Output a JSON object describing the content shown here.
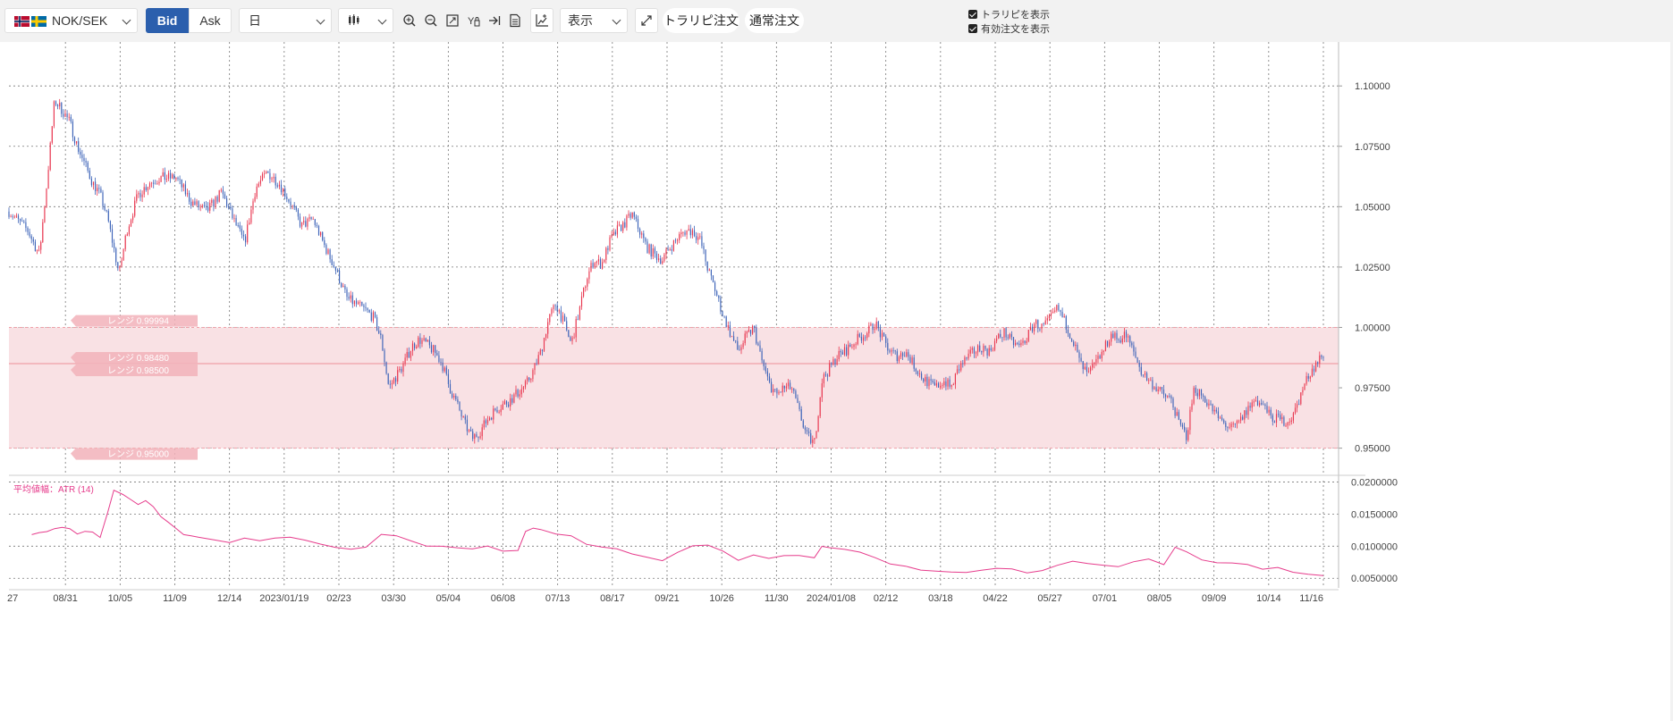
{
  "toolbar": {
    "pair": "NOK/SEK",
    "bid_label": "Bid",
    "ask_label": "Ask",
    "period": "日",
    "display_label": "表示",
    "trap_order_label": "トラリピ注文",
    "normal_order_label": "通常注文",
    "show_trap_label": "トラリピを表示",
    "show_orders_label": "有効注文を表示",
    "icons": [
      "zoom-in-icon",
      "zoom-out-icon",
      "fit-icon",
      "text-tool-icon",
      "jump-latest-icon",
      "document-icon",
      "add-indicator-icon",
      "fullscreen-icon"
    ]
  },
  "colors": {
    "accent": "#2b5fad",
    "up": "#e8364f",
    "down": "#3c63b8",
    "range_fill": "#f9e1e4",
    "range_line": "#f0a0a8",
    "atr_line": "#e63c8c"
  },
  "chart_data": [
    {
      "type": "candlestick",
      "pair": "NOK/SEK",
      "y_ticks": [
        "1.10000",
        "1.07500",
        "1.05000",
        "1.02500",
        "1.00000",
        "0.97500",
        "0.95000"
      ],
      "ylim": [
        0.9395,
        1.1182
      ],
      "x_ticks": [
        "27",
        "08/31",
        "10/05",
        "11/09",
        "12/14",
        "2023/01/19",
        "02/23",
        "03/30",
        "05/04",
        "06/08",
        "07/13",
        "08/17",
        "09/21",
        "10/26",
        "11/30",
        "2024/01/08",
        "02/12",
        "03/18",
        "04/22",
        "05/27",
        "07/01",
        "08/05",
        "09/09",
        "10/14",
        "11/16"
      ],
      "range_labels": [
        {
          "label": "レンジ 0.99994",
          "value": 0.99994
        },
        {
          "label": "レンジ 0.98480",
          "value": 0.9848
        },
        {
          "label": "レンジ 0.98500",
          "value": 0.985
        },
        {
          "label": "レンジ 0.95000",
          "value": 0.95
        }
      ],
      "range_band": [
        0.95,
        1.0
      ],
      "range_midline": 0.985,
      "close_path": [
        [
          0,
          1.048
        ],
        [
          2.5,
          1.04
        ],
        [
          4,
          1.03
        ],
        [
          5,
          1.06
        ],
        [
          6,
          1.094
        ],
        [
          7,
          1.09
        ],
        [
          8,
          1.085
        ],
        [
          9,
          1.075
        ],
        [
          11,
          1.06
        ],
        [
          12,
          1.055
        ],
        [
          13,
          1.045
        ],
        [
          14.5,
          1.022
        ],
        [
          15.5,
          1.04
        ],
        [
          17,
          1.055
        ],
        [
          18.5,
          1.06
        ],
        [
          20,
          1.062
        ],
        [
          22,
          1.062
        ],
        [
          24,
          1.052
        ],
        [
          26,
          1.048
        ],
        [
          28,
          1.056
        ],
        [
          29.5,
          1.045
        ],
        [
          31,
          1.035
        ],
        [
          32.5,
          1.058
        ],
        [
          34,
          1.064
        ],
        [
          35.5,
          1.06
        ],
        [
          37,
          1.052
        ],
        [
          38.5,
          1.042
        ],
        [
          40,
          1.045
        ],
        [
          41.5,
          1.034
        ],
        [
          43,
          1.024
        ],
        [
          44.5,
          1.012
        ],
        [
          46,
          1.009
        ],
        [
          47,
          1.007
        ],
        [
          48,
          1.004
        ],
        [
          49,
          0.995
        ],
        [
          50,
          0.975
        ],
        [
          51,
          0.98
        ],
        [
          52,
          0.985
        ],
        [
          53,
          0.992
        ],
        [
          54,
          0.995
        ],
        [
          55,
          0.993
        ],
        [
          56,
          0.99
        ],
        [
          57,
          0.985
        ],
        [
          58,
          0.975
        ],
        [
          59,
          0.968
        ],
        [
          60,
          0.96
        ],
        [
          61,
          0.954
        ],
        [
          62,
          0.957
        ],
        [
          63,
          0.962
        ],
        [
          64,
          0.966
        ],
        [
          65,
          0.968
        ],
        [
          66,
          0.97
        ],
        [
          67,
          0.973
        ],
        [
          68,
          0.976
        ],
        [
          69,
          0.982
        ],
        [
          70,
          0.99
        ],
        [
          71,
          1.003
        ],
        [
          72,
          1.01
        ],
        [
          73,
          1.002
        ],
        [
          74,
          0.993
        ],
        [
          75,
          1.006
        ],
        [
          76,
          1.02
        ],
        [
          77,
          1.028
        ],
        [
          78,
          1.026
        ],
        [
          79,
          1.035
        ],
        [
          80,
          1.04
        ],
        [
          81,
          1.043
        ],
        [
          82,
          1.047
        ],
        [
          83,
          1.04
        ],
        [
          84,
          1.033
        ],
        [
          85,
          1.03
        ],
        [
          86,
          1.028
        ],
        [
          87,
          1.033
        ],
        [
          88,
          1.037
        ],
        [
          89,
          1.04
        ],
        [
          90,
          1.04
        ],
        [
          91,
          1.036
        ],
        [
          92,
          1.024
        ],
        [
          93,
          1.015
        ],
        [
          94,
          1.005
        ],
        [
          95,
          0.997
        ],
        [
          96,
          0.99
        ],
        [
          97,
          0.996
        ],
        [
          98,
          1.0
        ],
        [
          99,
          0.987
        ],
        [
          100,
          0.977
        ],
        [
          101,
          0.972
        ],
        [
          102,
          0.975
        ],
        [
          103,
          0.975
        ],
        [
          104,
          0.965
        ],
        [
          105,
          0.955
        ],
        [
          106,
          0.952
        ],
        [
          107,
          0.978
        ],
        [
          108,
          0.983
        ],
        [
          109,
          0.988
        ],
        [
          110,
          0.99
        ],
        [
          111,
          0.993
        ],
        [
          112,
          0.996
        ],
        [
          113,
          0.998
        ],
        [
          114,
          1.002
        ],
        [
          115,
          0.995
        ],
        [
          116,
          0.99
        ],
        [
          117,
          0.988
        ],
        [
          118,
          0.99
        ],
        [
          119,
          0.985
        ],
        [
          120,
          0.98
        ],
        [
          121,
          0.977
        ],
        [
          122,
          0.975
        ],
        [
          123,
          0.978
        ],
        [
          124,
          0.975
        ],
        [
          125,
          0.983
        ],
        [
          126,
          0.987
        ],
        [
          127,
          0.99
        ],
        [
          128,
          0.992
        ],
        [
          129,
          0.99
        ],
        [
          130,
          0.995
        ],
        [
          131,
          0.998
        ],
        [
          132,
          0.994
        ],
        [
          133,
          0.992
        ],
        [
          134,
          0.996
        ],
        [
          135,
          1.002
        ],
        [
          136,
          1.0
        ],
        [
          137,
          1.003
        ],
        [
          138,
          1.008
        ],
        [
          139,
          1.002
        ],
        [
          140,
          0.995
        ],
        [
          141,
          0.985
        ],
        [
          142,
          0.98
        ],
        [
          143,
          0.985
        ],
        [
          144,
          0.99
        ],
        [
          145,
          0.997
        ],
        [
          146,
          0.995
        ],
        [
          147,
          0.997
        ],
        [
          148,
          0.99
        ],
        [
          149,
          0.982
        ],
        [
          150,
          0.978
        ],
        [
          151,
          0.975
        ],
        [
          152,
          0.972
        ],
        [
          153,
          0.97
        ],
        [
          154,
          0.96
        ],
        [
          155,
          0.955
        ],
        [
          156,
          0.975
        ],
        [
          157,
          0.972
        ],
        [
          158,
          0.968
        ],
        [
          159,
          0.963
        ],
        [
          160,
          0.96
        ],
        [
          161,
          0.958
        ],
        [
          162,
          0.961
        ],
        [
          163,
          0.966
        ],
        [
          164,
          0.97
        ],
        [
          165,
          0.968
        ],
        [
          166,
          0.963
        ],
        [
          167,
          0.962
        ],
        [
          168,
          0.961
        ],
        [
          169,
          0.963
        ],
        [
          170,
          0.972
        ],
        [
          171,
          0.98
        ],
        [
          172,
          0.985
        ],
        [
          173,
          0.989
        ]
      ],
      "xlim": [
        0,
        175
      ]
    },
    {
      "type": "line",
      "title": "平均値幅：ATR (14)",
      "y_ticks": [
        "0.0200000",
        "0.0150000",
        "0.0100000",
        "0.0050000"
      ],
      "ylim": [
        0.0035,
        0.0202
      ],
      "series": [
        {
          "name": "ATR (14)",
          "points": [
            [
              3,
              0.0118
            ],
            [
              4,
              0.012
            ],
            [
              5,
              0.0125
            ],
            [
              6,
              0.0128
            ],
            [
              7,
              0.0131
            ],
            [
              8,
              0.0126
            ],
            [
              9,
              0.012
            ],
            [
              10,
              0.0125
            ],
            [
              11,
              0.0122
            ],
            [
              12,
              0.0112
            ],
            [
              13,
              0.015
            ],
            [
              13.8,
              0.0188
            ],
            [
              15,
              0.0178
            ],
            [
              16,
              0.017
            ],
            [
              17,
              0.0165
            ],
            [
              18,
              0.0168
            ],
            [
              19,
              0.016
            ],
            [
              20,
              0.0148
            ],
            [
              21,
              0.0135
            ],
            [
              22,
              0.0125
            ],
            [
              23,
              0.012
            ],
            [
              24,
              0.0115
            ],
            [
              25,
              0.0112
            ],
            [
              27,
              0.011
            ],
            [
              29,
              0.0108
            ],
            [
              31,
              0.0112
            ],
            [
              33,
              0.011
            ],
            [
              35,
              0.0115
            ],
            [
              37,
              0.0112
            ],
            [
              39,
              0.011
            ],
            [
              41,
              0.0105
            ],
            [
              43,
              0.01
            ],
            [
              45,
              0.0098
            ],
            [
              47,
              0.01
            ],
            [
              49,
              0.0118
            ],
            [
              51,
              0.0115
            ],
            [
              53,
              0.011
            ],
            [
              55,
              0.0102
            ],
            [
              57,
              0.0098
            ],
            [
              59,
              0.0095
            ],
            [
              61,
              0.0097
            ],
            [
              63,
              0.0102
            ],
            [
              65,
              0.0095
            ],
            [
              67,
              0.0092
            ],
            [
              68,
              0.012
            ],
            [
              69,
              0.013
            ],
            [
              70,
              0.0126
            ],
            [
              72,
              0.012
            ],
            [
              74,
              0.0115
            ],
            [
              76,
              0.0105
            ],
            [
              78,
              0.0098
            ],
            [
              80,
              0.0095
            ],
            [
              82,
              0.009
            ],
            [
              84,
              0.0082
            ],
            [
              86,
              0.0076
            ],
            [
              88,
              0.009
            ],
            [
              90,
              0.01
            ],
            [
              92,
              0.0102
            ],
            [
              94,
              0.009
            ],
            [
              96,
              0.008
            ],
            [
              98,
              0.0085
            ],
            [
              100,
              0.0082
            ],
            [
              102,
              0.0088
            ],
            [
              104,
              0.0084
            ],
            [
              106,
              0.0083
            ],
            [
              107,
              0.0102
            ],
            [
              108,
              0.01
            ],
            [
              110,
              0.0098
            ],
            [
              112,
              0.0092
            ],
            [
              114,
              0.0082
            ],
            [
              116,
              0.0072
            ],
            [
              118,
              0.007
            ],
            [
              120,
              0.0064
            ],
            [
              122,
              0.006
            ],
            [
              124,
              0.0058
            ],
            [
              126,
              0.006
            ],
            [
              128,
              0.0062
            ],
            [
              130,
              0.0066
            ],
            [
              132,
              0.0062
            ],
            [
              134,
              0.006
            ],
            [
              136,
              0.0064
            ],
            [
              138,
              0.0068
            ],
            [
              140,
              0.0076
            ],
            [
              142,
              0.0072
            ],
            [
              144,
              0.007
            ],
            [
              146,
              0.0068
            ],
            [
              148,
              0.0076
            ],
            [
              150,
              0.008
            ],
            [
              152,
              0.0074
            ],
            [
              153.5,
              0.0098
            ],
            [
              155,
              0.009
            ],
            [
              157,
              0.008
            ],
            [
              159,
              0.0076
            ],
            [
              161,
              0.0072
            ],
            [
              163,
              0.007
            ],
            [
              165,
              0.0066
            ],
            [
              167,
              0.0064
            ],
            [
              169,
              0.006
            ],
            [
              171,
              0.0056
            ],
            [
              173,
              0.0054
            ]
          ]
        }
      ]
    }
  ]
}
